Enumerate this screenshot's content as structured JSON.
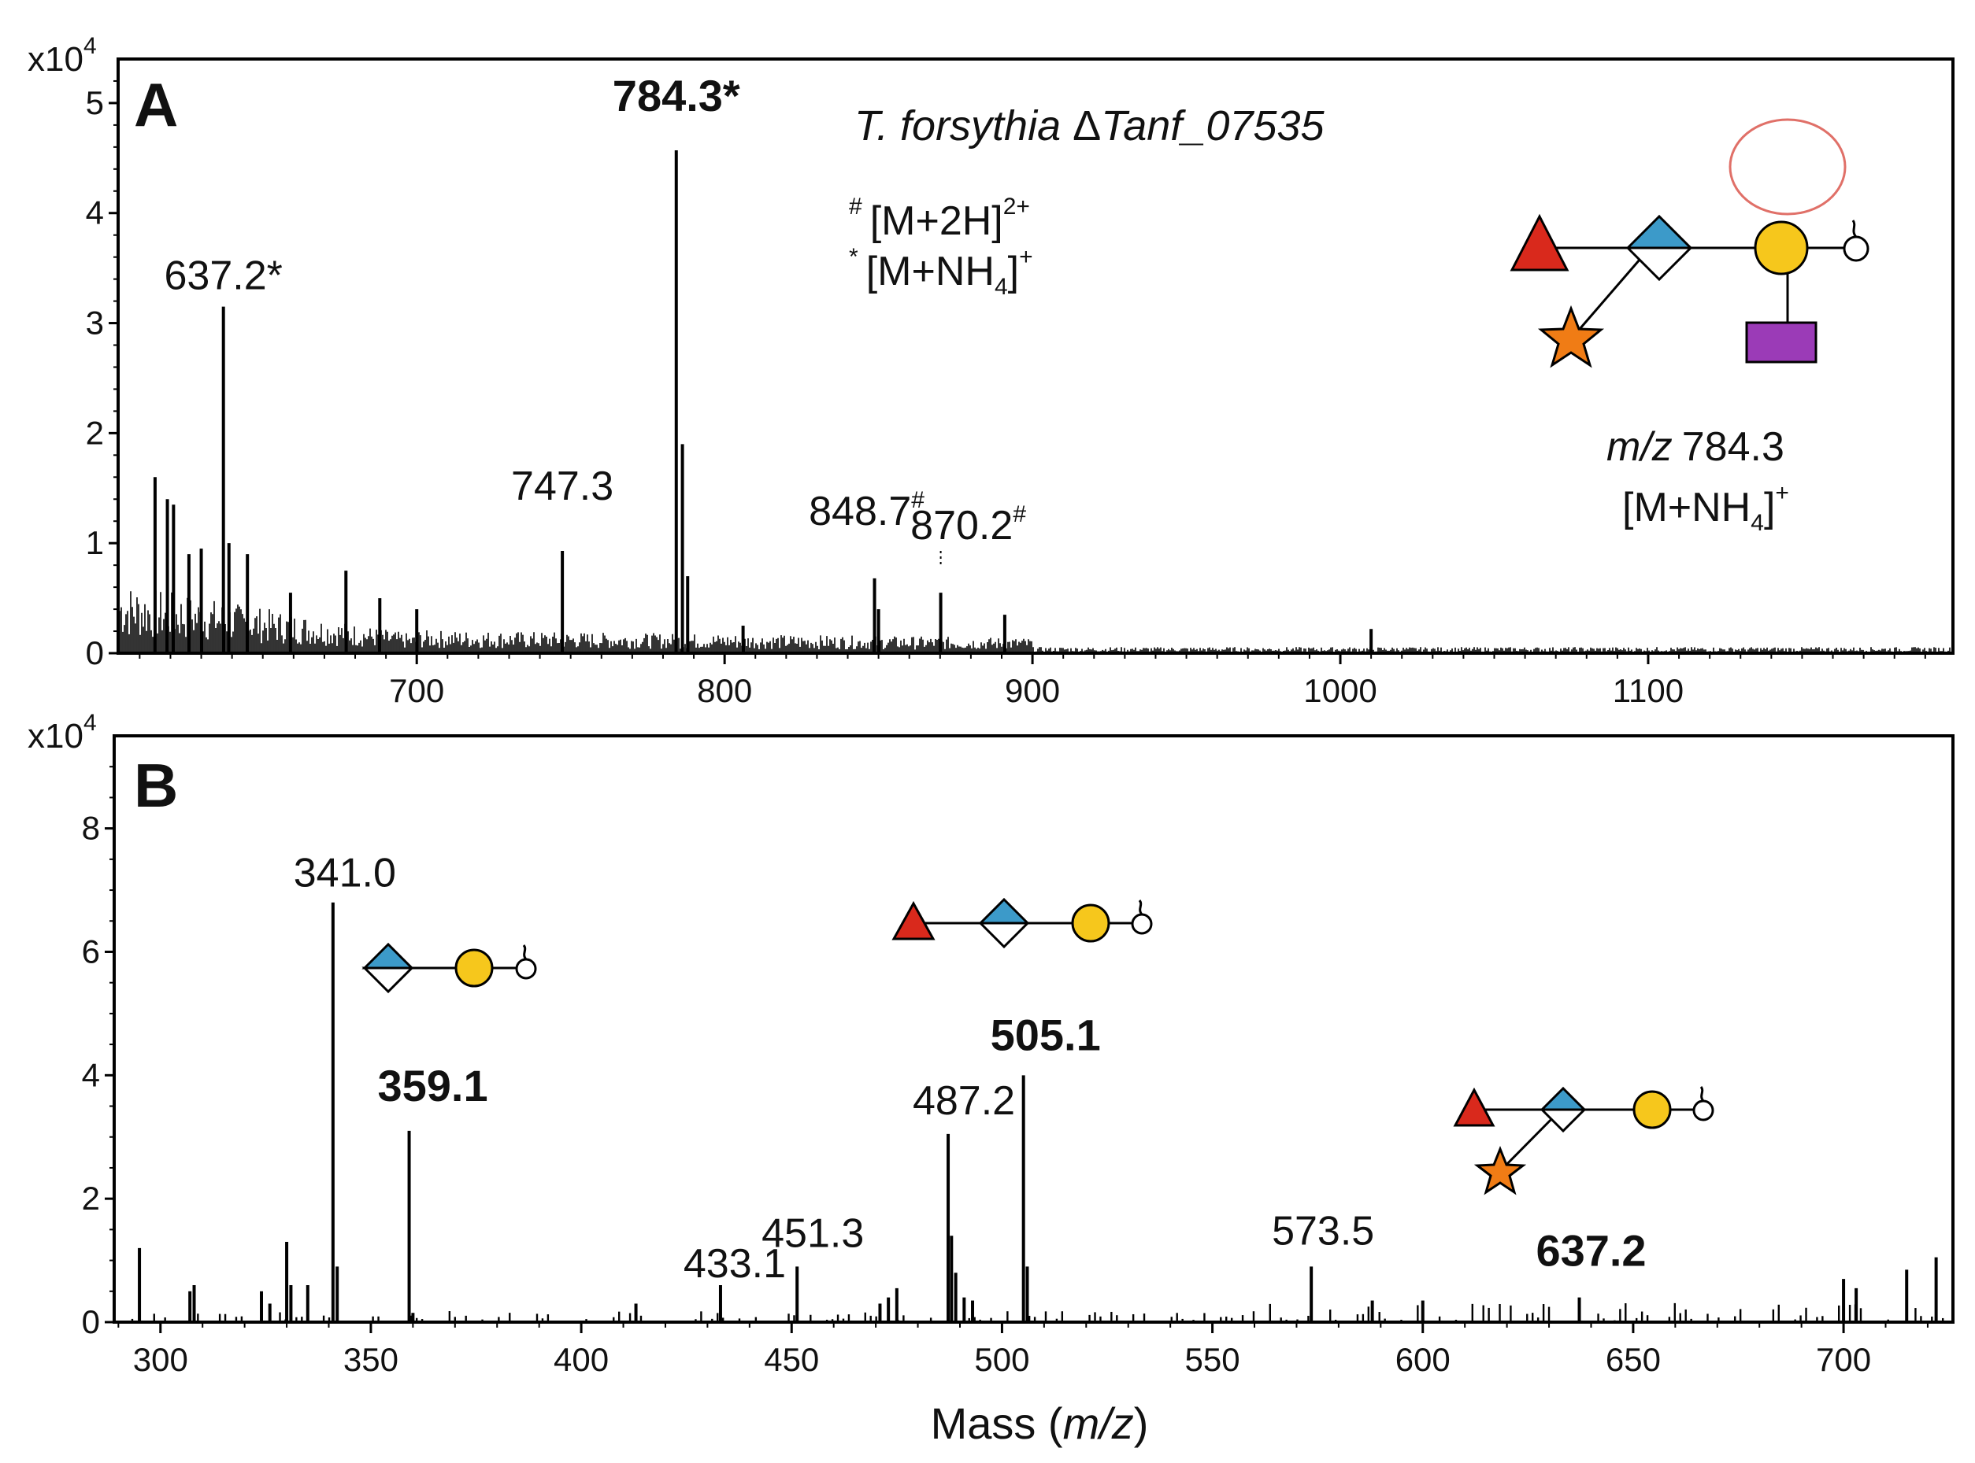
{
  "colors": {
    "fucose": "#d9291c",
    "glcnac_diamond": "#3c9ac9",
    "galactose": "#f6c71c",
    "star": "#f07c15",
    "square": "#9b3bb7",
    "circle_outline": "#e07068",
    "spectrum": "#000000"
  },
  "xlabel": {
    "pre": "Mass (",
    "italic": "m/z",
    "post": ")"
  },
  "chart_data": [
    {
      "type": "line",
      "panel": "A",
      "title": "T. forsythia ΔTanf_07535",
      "title_plain": "T. forsythia ",
      "title_delta": "Δ",
      "title_italic": "Tanf_07535",
      "xlim": [
        603,
        1199
      ],
      "ylim": [
        0,
        5.4
      ],
      "y_multiplier": "x10",
      "y_multiplier_exp": "4",
      "xticks": [
        700,
        800,
        900,
        1000,
        1100
      ],
      "xtick_labels": [
        "700",
        "800",
        "900",
        "1000",
        "1100"
      ],
      "yticks": [
        0,
        1,
        2,
        3,
        4,
        5
      ],
      "ytick_labels": [
        "0",
        "1",
        "2",
        "3",
        "4",
        "5"
      ],
      "peaks": [
        {
          "x": 615,
          "y": 1.6
        },
        {
          "x": 619,
          "y": 1.4
        },
        {
          "x": 621,
          "y": 1.35
        },
        {
          "x": 626,
          "y": 0.9
        },
        {
          "x": 630,
          "y": 0.95
        },
        {
          "x": 637.2,
          "y": 3.15
        },
        {
          "x": 639,
          "y": 1.0
        },
        {
          "x": 645,
          "y": 0.9
        },
        {
          "x": 659,
          "y": 0.55
        },
        {
          "x": 677,
          "y": 0.75
        },
        {
          "x": 688,
          "y": 0.5
        },
        {
          "x": 700,
          "y": 0.4
        },
        {
          "x": 747.3,
          "y": 0.93
        },
        {
          "x": 784.3,
          "y": 4.57
        },
        {
          "x": 786.3,
          "y": 1.9
        },
        {
          "x": 788,
          "y": 0.7
        },
        {
          "x": 806,
          "y": 0.25
        },
        {
          "x": 848.7,
          "y": 0.68
        },
        {
          "x": 850,
          "y": 0.4
        },
        {
          "x": 870.2,
          "y": 0.55
        },
        {
          "x": 891,
          "y": 0.35
        },
        {
          "x": 1010,
          "y": 0.22
        }
      ],
      "labels": [
        {
          "text": "637.2*",
          "x": 637.2,
          "y": 3.15,
          "bold": false,
          "sup": ""
        },
        {
          "text": "784.3*",
          "x": 784.3,
          "y": 4.57,
          "bold": true,
          "sup": ""
        },
        {
          "text": "747.3",
          "x": 747.3,
          "y": 0.93,
          "bold": false,
          "sup": ""
        },
        {
          "text": "848.7",
          "x": 848.7,
          "y": 0.68,
          "bold": false,
          "sup": "#"
        },
        {
          "text": "870.2",
          "x": 870.2,
          "y": 0.55,
          "bold": false,
          "sup": "#"
        }
      ],
      "legend": [
        {
          "symbol": "#",
          "ion": "[M+2H]",
          "charge": "2+"
        },
        {
          "symbol": "*",
          "ion": "[M+NH",
          "sub": "4",
          "close": "]",
          "charge": "+"
        }
      ],
      "structure_label": {
        "mz_italic": "m/z",
        "mz_value": "784.3",
        "ion": "[M+NH",
        "sub": "4",
        "close": "]",
        "charge": "+"
      }
    },
    {
      "type": "bar",
      "panel": "B",
      "xlim": [
        289,
        726
      ],
      "ylim": [
        0,
        9.5
      ],
      "y_multiplier": "x10",
      "y_multiplier_exp": "4",
      "xticks": [
        300,
        350,
        400,
        450,
        500,
        550,
        600,
        650,
        700
      ],
      "xtick_labels": [
        "300",
        "350",
        "400",
        "450",
        "500",
        "550",
        "600",
        "650",
        "700"
      ],
      "yticks": [
        0,
        2,
        4,
        6,
        8
      ],
      "ytick_labels": [
        "0",
        "2",
        "4",
        "6",
        "8"
      ],
      "peaks": [
        {
          "x": 295,
          "y": 1.2
        },
        {
          "x": 307,
          "y": 0.5
        },
        {
          "x": 308,
          "y": 0.6
        },
        {
          "x": 324,
          "y": 0.5
        },
        {
          "x": 326,
          "y": 0.3
        },
        {
          "x": 330,
          "y": 1.3
        },
        {
          "x": 331,
          "y": 0.6
        },
        {
          "x": 335,
          "y": 0.6
        },
        {
          "x": 341.0,
          "y": 6.8
        },
        {
          "x": 342,
          "y": 0.9
        },
        {
          "x": 359.1,
          "y": 3.1
        },
        {
          "x": 360,
          "y": 0.15
        },
        {
          "x": 413,
          "y": 0.3
        },
        {
          "x": 433.1,
          "y": 0.6
        },
        {
          "x": 451.3,
          "y": 0.9
        },
        {
          "x": 471,
          "y": 0.3
        },
        {
          "x": 473,
          "y": 0.4
        },
        {
          "x": 475,
          "y": 0.55
        },
        {
          "x": 487.2,
          "y": 3.05
        },
        {
          "x": 488,
          "y": 1.4
        },
        {
          "x": 489,
          "y": 0.8
        },
        {
          "x": 491,
          "y": 0.4
        },
        {
          "x": 493,
          "y": 0.35
        },
        {
          "x": 505.1,
          "y": 4.0
        },
        {
          "x": 506,
          "y": 0.9
        },
        {
          "x": 573.5,
          "y": 0.9
        },
        {
          "x": 588,
          "y": 0.35
        },
        {
          "x": 600,
          "y": 0.35
        },
        {
          "x": 637.2,
          "y": 0.4
        },
        {
          "x": 700,
          "y": 0.7
        },
        {
          "x": 703,
          "y": 0.55
        },
        {
          "x": 715,
          "y": 0.85
        },
        {
          "x": 722,
          "y": 1.05
        }
      ],
      "labels": [
        {
          "text": "341.0",
          "x": 341.0,
          "y": 6.8,
          "bold": false
        },
        {
          "text": "359.1",
          "x": 359.1,
          "y": 3.1,
          "bold": true
        },
        {
          "text": "487.2",
          "x": 487.2,
          "y": 3.05,
          "bold": false
        },
        {
          "text": "505.1",
          "x": 505.1,
          "y": 4.0,
          "bold": true
        },
        {
          "text": "433.1",
          "x": 433.1,
          "y": 0.6,
          "bold": false
        },
        {
          "text": "451.3",
          "x": 451.3,
          "y": 0.9,
          "bold": false
        },
        {
          "text": "573.5",
          "x": 573.5,
          "y": 0.9,
          "bold": false
        },
        {
          "text": "637.2",
          "x": 637.2,
          "y": 0.4,
          "bold": true
        }
      ]
    }
  ]
}
